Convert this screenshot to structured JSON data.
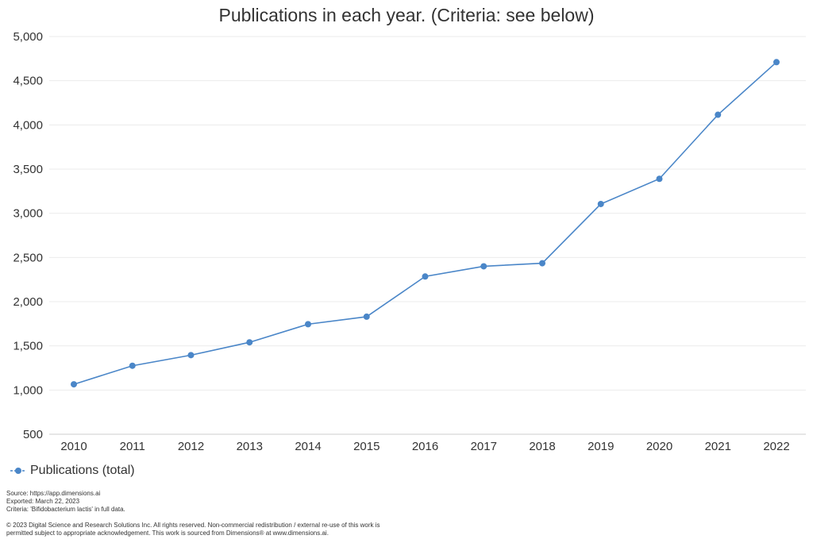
{
  "chart_data": {
    "type": "line",
    "title": "Publications in each year. (Criteria: see below)",
    "xlabel": "",
    "ylabel": "",
    "x": [
      "2010",
      "2011",
      "2012",
      "2013",
      "2014",
      "2015",
      "2016",
      "2017",
      "2018",
      "2019",
      "2020",
      "2021",
      "2022"
    ],
    "series": [
      {
        "name": "Publications (total)",
        "color": "#4a86c8",
        "values": [
          1065,
          1275,
          1395,
          1540,
          1745,
          1830,
          2285,
          2400,
          2435,
          3105,
          3390,
          4115,
          4710
        ]
      }
    ],
    "ylim": [
      500,
      5000
    ],
    "yticks": [
      500,
      1000,
      1500,
      2000,
      2500,
      3000,
      3500,
      4000,
      4500,
      5000
    ],
    "ytick_labels": [
      "500",
      "1,000",
      "1,500",
      "2,000",
      "2,500",
      "3,000",
      "3,500",
      "4,000",
      "4,500",
      "5,000"
    ],
    "grid": true,
    "legend_position": "bottom-left"
  },
  "footer": {
    "source": "Source: https://app.dimensions.ai",
    "exported": "Exported: March 22, 2023",
    "criteria": "Criteria: 'Bifidobacterium lactis' in full data.",
    "copyright_line1": "© 2023 Digital Science and Research Solutions Inc. All rights reserved. Non-commercial redistribution / external re-use of this work is",
    "copyright_line2": "permitted subject to appropriate acknowledgement. This work is sourced from Dimensions® at www.dimensions.ai."
  }
}
